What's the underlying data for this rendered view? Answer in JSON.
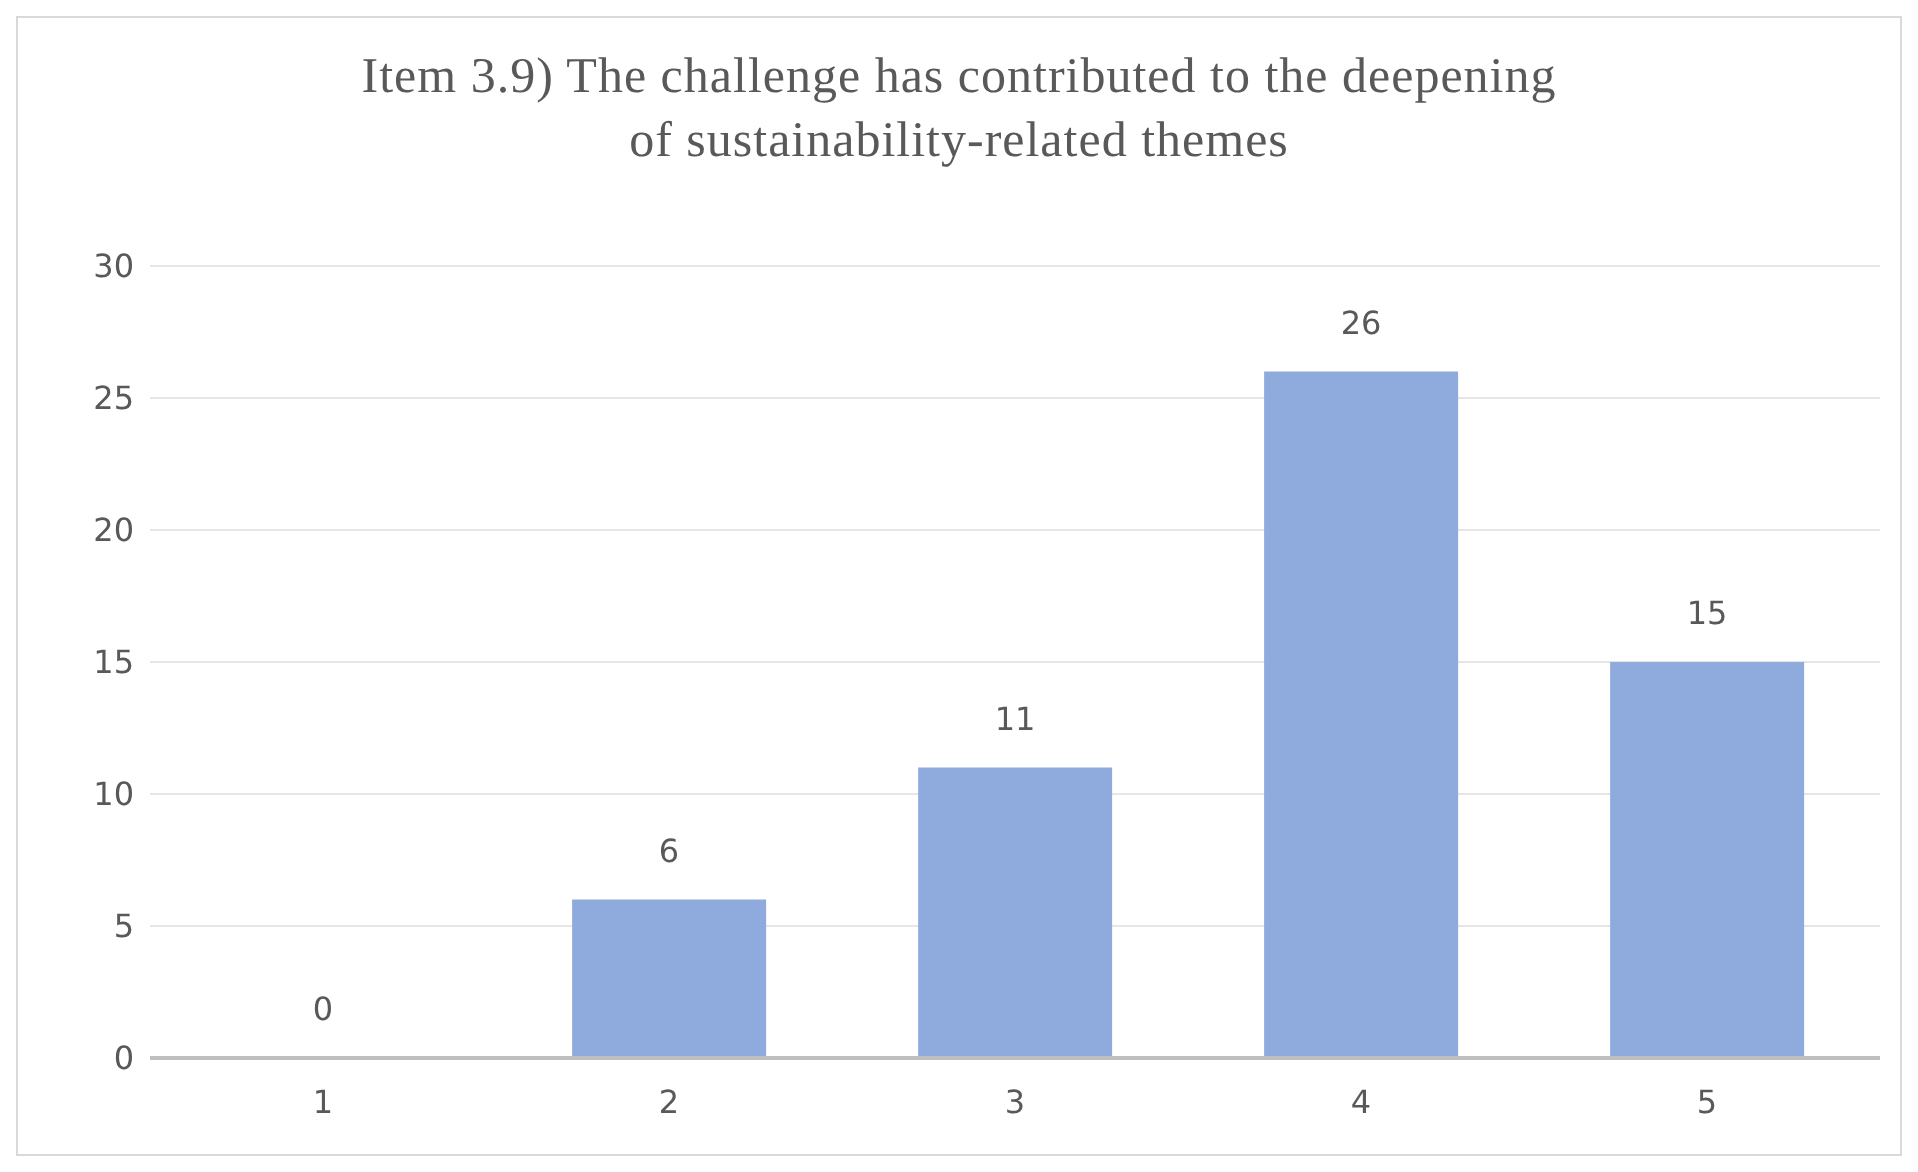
{
  "chart_data": {
    "type": "bar",
    "title": "Item 3.9) The challenge has contributed to the deepening of sustainability-related themes",
    "categories": [
      "1",
      "2",
      "3",
      "4",
      "5"
    ],
    "values": [
      0,
      6,
      11,
      26,
      15
    ],
    "color": "#8faadc",
    "ylim": [
      0,
      30
    ],
    "yticks": [
      0,
      5,
      10,
      15,
      20,
      25,
      30
    ],
    "grid": "y",
    "data_labels": true
  }
}
